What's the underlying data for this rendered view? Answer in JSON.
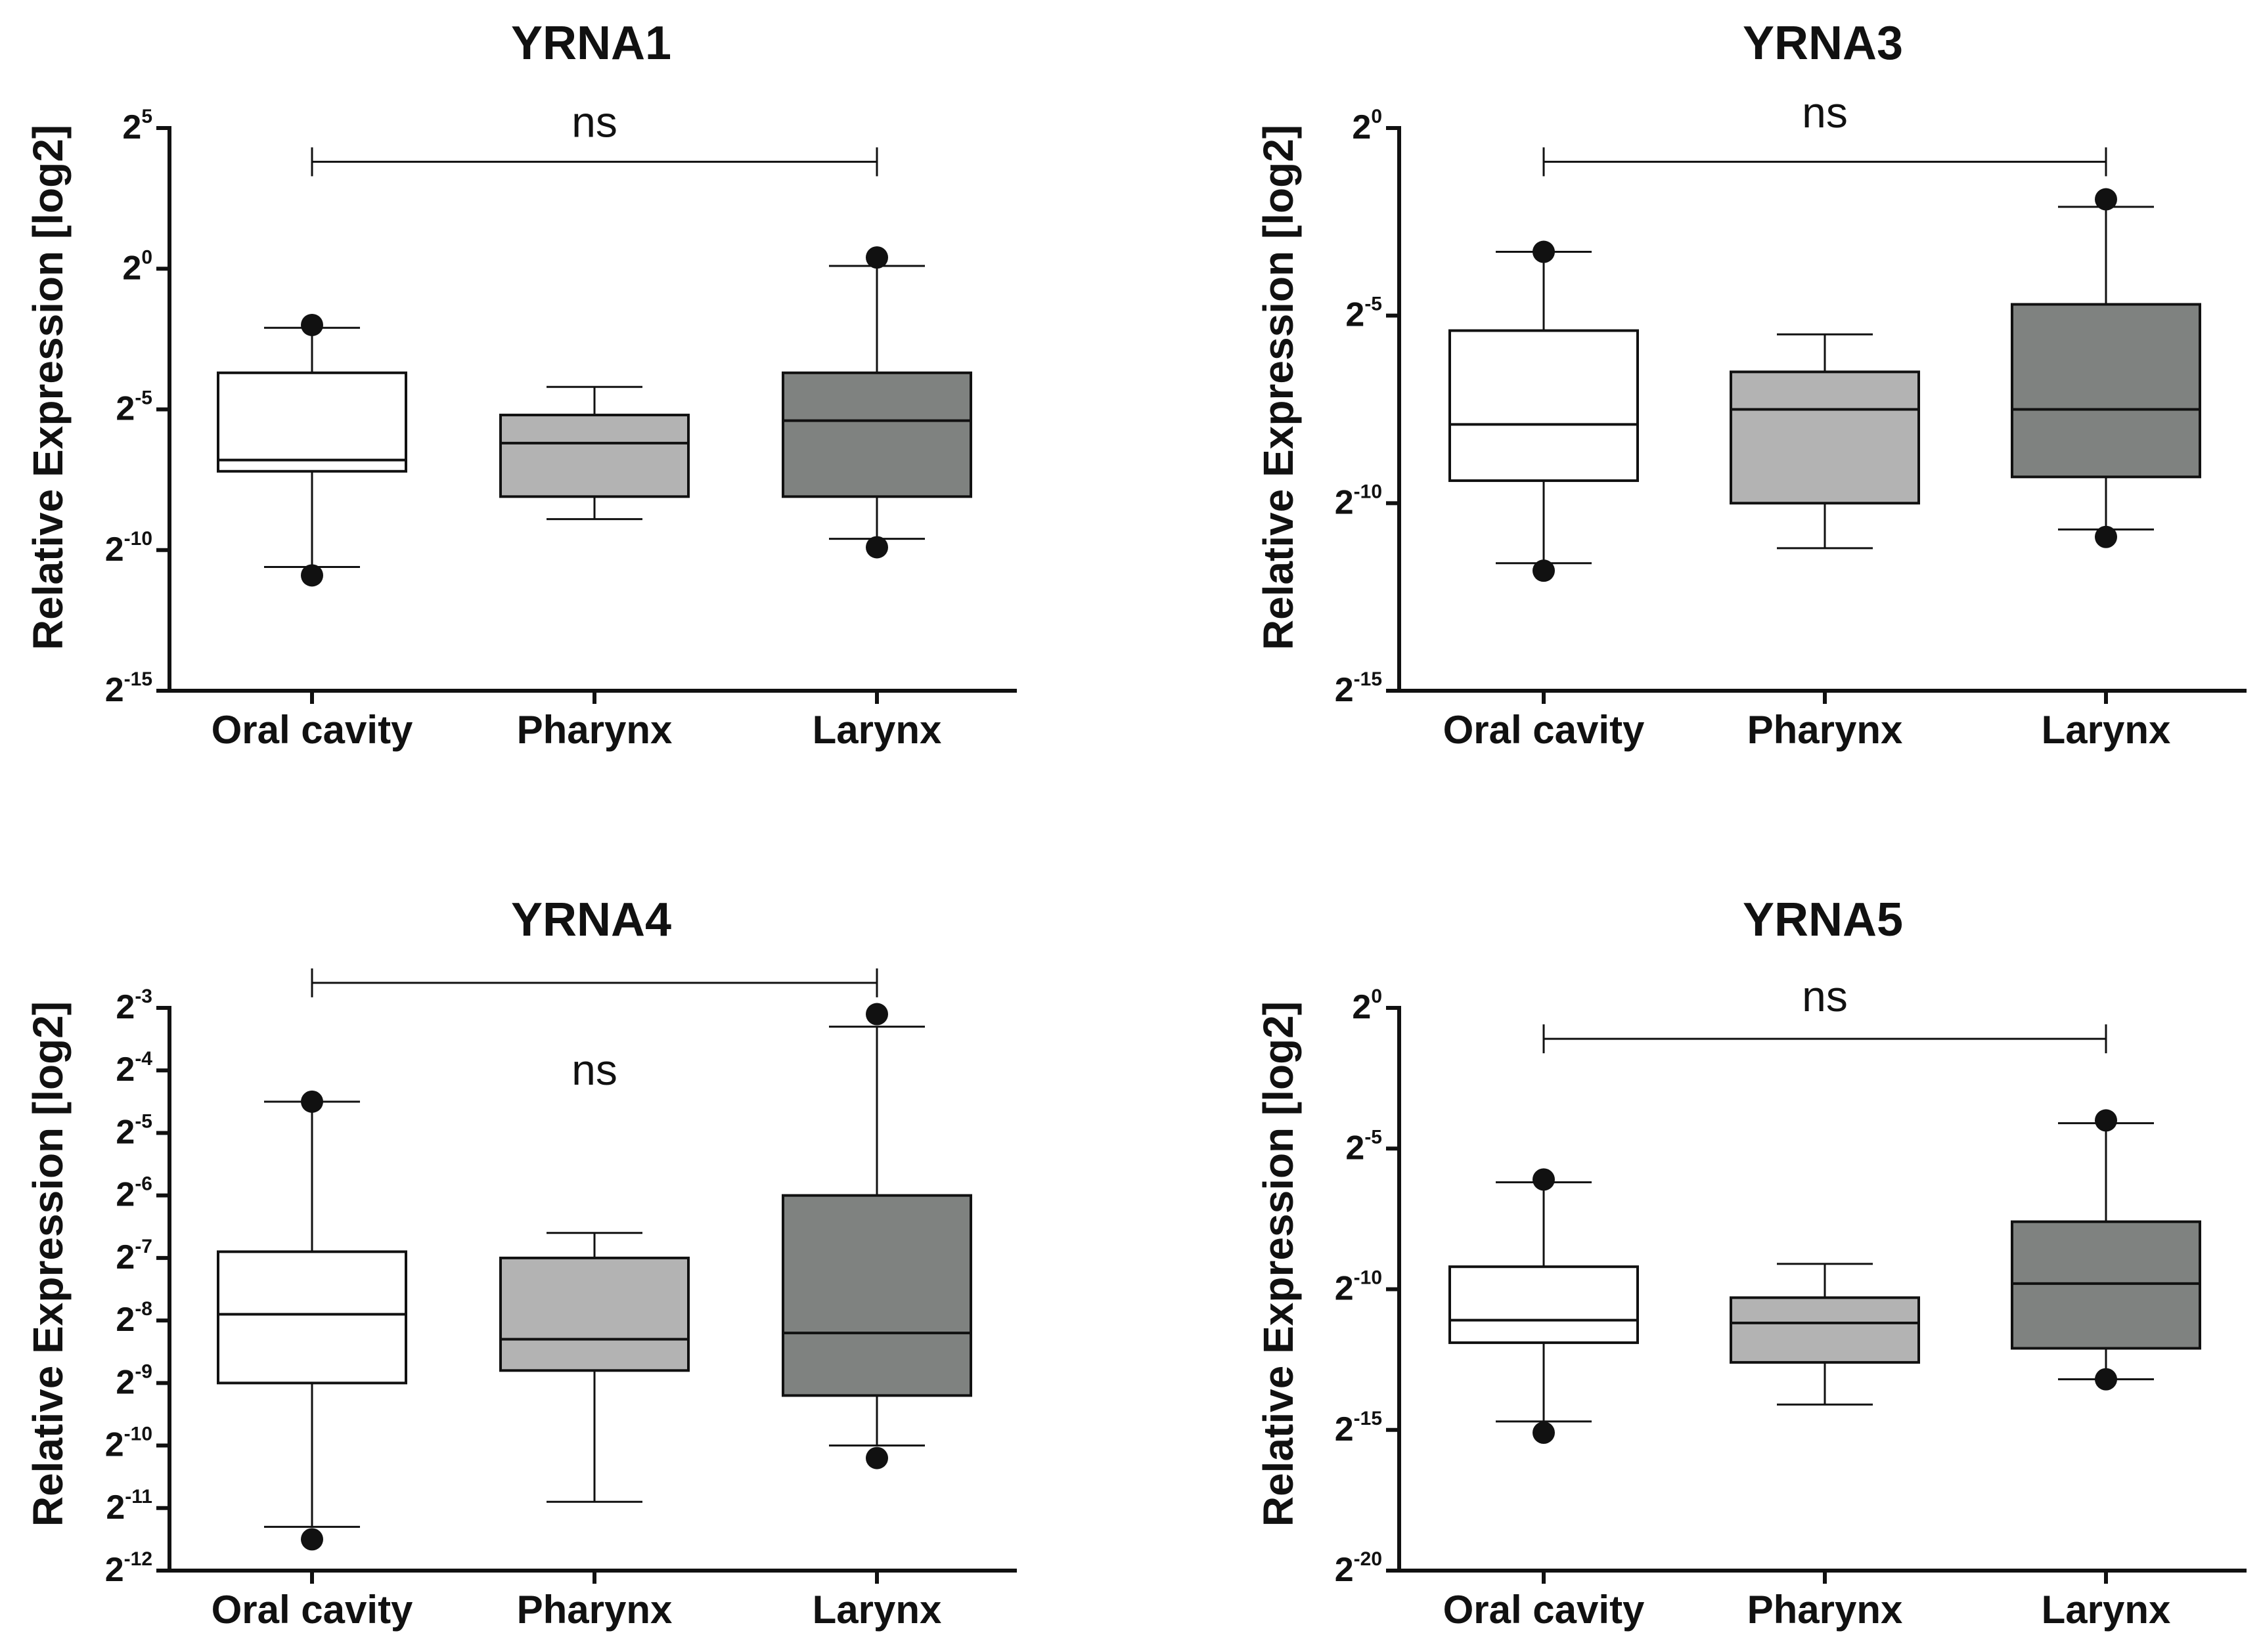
{
  "chart_data": [
    {
      "type": "box",
      "title": "YRNA1",
      "ylabel": "Relative Expression [log2]",
      "xlabel": "",
      "y_scale": "log2 (ticks shown as powers of two)",
      "ylim": [
        -15,
        5
      ],
      "yticks": [
        {
          "base": "2",
          "exp": "5",
          "value": 5
        },
        {
          "base": "2",
          "exp": "0",
          "value": 0
        },
        {
          "base": "2",
          "exp": "-5",
          "value": -5
        },
        {
          "base": "2",
          "exp": "-10",
          "value": -10
        },
        {
          "base": "2",
          "exp": "-15",
          "value": -15
        }
      ],
      "categories": [
        "Oral cavity",
        "Pharynx",
        "Larynx"
      ],
      "significance": {
        "label": "ns",
        "from": 0,
        "to": 2,
        "bracket_y": 3.8,
        "label_y": 5.2
      },
      "boxes": [
        {
          "category": "Oral cavity",
          "fill": "#ffffff",
          "whisker_low": -10.6,
          "q1": -7.2,
          "median": -6.8,
          "q3": -3.7,
          "whisker_high": -2.1,
          "outliers": [
            -10.9,
            -2.0
          ]
        },
        {
          "category": "Pharynx",
          "fill": "#b3b3b3",
          "whisker_low": -8.9,
          "q1": -8.1,
          "median": -6.2,
          "q3": -5.2,
          "whisker_high": -4.2,
          "outliers": []
        },
        {
          "category": "Larynx",
          "fill": "#7f8280",
          "whisker_low": -9.6,
          "q1": -8.1,
          "median": -5.4,
          "q3": -3.7,
          "whisker_high": 0.1,
          "outliers": [
            -9.9,
            0.4
          ]
        }
      ]
    },
    {
      "type": "box",
      "title": "YRNA3",
      "ylabel": "Relative Expression [log2]",
      "xlabel": "",
      "y_scale": "log2 (ticks shown as powers of two)",
      "ylim": [
        -15,
        0
      ],
      "yticks": [
        {
          "base": "2",
          "exp": "0",
          "value": 0
        },
        {
          "base": "2",
          "exp": "-5",
          "value": -5
        },
        {
          "base": "2",
          "exp": "-10",
          "value": -10
        },
        {
          "base": "2",
          "exp": "-15",
          "value": -15
        }
      ],
      "categories": [
        "Oral cavity",
        "Pharynx",
        "Larynx"
      ],
      "significance": {
        "label": "ns",
        "from": 0,
        "to": 2,
        "bracket_y": -0.9,
        "label_y": 0.4
      },
      "boxes": [
        {
          "category": "Oral cavity",
          "fill": "#ffffff",
          "whisker_low": -11.6,
          "q1": -9.4,
          "median": -7.9,
          "q3": -5.4,
          "whisker_high": -3.3,
          "outliers": [
            -11.8,
            -3.3
          ]
        },
        {
          "category": "Pharynx",
          "fill": "#b3b3b3",
          "whisker_low": -11.2,
          "q1": -10.0,
          "median": -7.5,
          "q3": -6.5,
          "whisker_high": -5.5,
          "outliers": []
        },
        {
          "category": "Larynx",
          "fill": "#7f8280",
          "whisker_low": -10.7,
          "q1": -9.3,
          "median": -7.5,
          "q3": -4.7,
          "whisker_high": -2.1,
          "outliers": [
            -10.9,
            -1.9
          ]
        }
      ]
    },
    {
      "type": "box",
      "title": "YRNA4",
      "ylabel": "Relative Expression [log2]",
      "xlabel": "",
      "y_scale": "log2 (ticks shown as powers of two)",
      "ylim": [
        -12,
        -3
      ],
      "yticks": [
        {
          "base": "2",
          "exp": "-3",
          "value": -3
        },
        {
          "base": "2",
          "exp": "-4",
          "value": -4
        },
        {
          "base": "2",
          "exp": "-5",
          "value": -5
        },
        {
          "base": "2",
          "exp": "-6",
          "value": -6
        },
        {
          "base": "2",
          "exp": "-7",
          "value": -7
        },
        {
          "base": "2",
          "exp": "-8",
          "value": -8
        },
        {
          "base": "2",
          "exp": "-9",
          "value": -9
        },
        {
          "base": "2",
          "exp": "-10",
          "value": -10
        },
        {
          "base": "2",
          "exp": "-11",
          "value": -11
        },
        {
          "base": "2",
          "exp": "-12",
          "value": -12
        }
      ],
      "categories": [
        "Oral cavity",
        "Pharynx",
        "Larynx"
      ],
      "significance": {
        "label": "ns",
        "from": 0,
        "to": 2,
        "bracket_y": -2.6,
        "label_y": -4.0
      },
      "boxes": [
        {
          "category": "Oral cavity",
          "fill": "#ffffff",
          "whisker_low": -11.3,
          "q1": -9.0,
          "median": -7.9,
          "q3": -6.9,
          "whisker_high": -4.5,
          "outliers": [
            -11.5,
            -4.5
          ]
        },
        {
          "category": "Pharynx",
          "fill": "#b3b3b3",
          "whisker_low": -10.9,
          "q1": -8.8,
          "median": -8.3,
          "q3": -7.0,
          "whisker_high": -6.6,
          "outliers": []
        },
        {
          "category": "Larynx",
          "fill": "#7f8280",
          "whisker_low": -10.0,
          "q1": -9.2,
          "median": -8.2,
          "q3": -6.0,
          "whisker_high": -3.3,
          "outliers": [
            -10.2,
            -3.1
          ]
        }
      ]
    },
    {
      "type": "box",
      "title": "YRNA5",
      "ylabel": "Relative Expression [log2]",
      "xlabel": "",
      "y_scale": "log2 (ticks shown as powers of two)",
      "ylim": [
        -20,
        0
      ],
      "yticks": [
        {
          "base": "2",
          "exp": "0",
          "value": 0
        },
        {
          "base": "2",
          "exp": "-5",
          "value": -5
        },
        {
          "base": "2",
          "exp": "-10",
          "value": -10
        },
        {
          "base": "2",
          "exp": "-15",
          "value": -15
        },
        {
          "base": "2",
          "exp": "-20",
          "value": -20
        }
      ],
      "categories": [
        "Oral cavity",
        "Pharynx",
        "Larynx"
      ],
      "significance": {
        "label": "ns",
        "from": 0,
        "to": 2,
        "bracket_y": -1.1,
        "label_y": 0.4
      },
      "boxes": [
        {
          "category": "Oral cavity",
          "fill": "#ffffff",
          "whisker_low": -14.7,
          "q1": -11.9,
          "median": -11.1,
          "q3": -9.2,
          "whisker_high": -6.2,
          "outliers": [
            -15.1,
            -6.1
          ]
        },
        {
          "category": "Pharynx",
          "fill": "#b3b3b3",
          "whisker_low": -14.1,
          "q1": -12.6,
          "median": -11.2,
          "q3": -10.3,
          "whisker_high": -9.1,
          "outliers": []
        },
        {
          "category": "Larynx",
          "fill": "#7f8280",
          "whisker_low": -13.2,
          "q1": -12.1,
          "median": -9.8,
          "q3": -7.6,
          "whisker_high": -4.1,
          "outliers": [
            -13.2,
            -4.0
          ]
        }
      ]
    }
  ]
}
